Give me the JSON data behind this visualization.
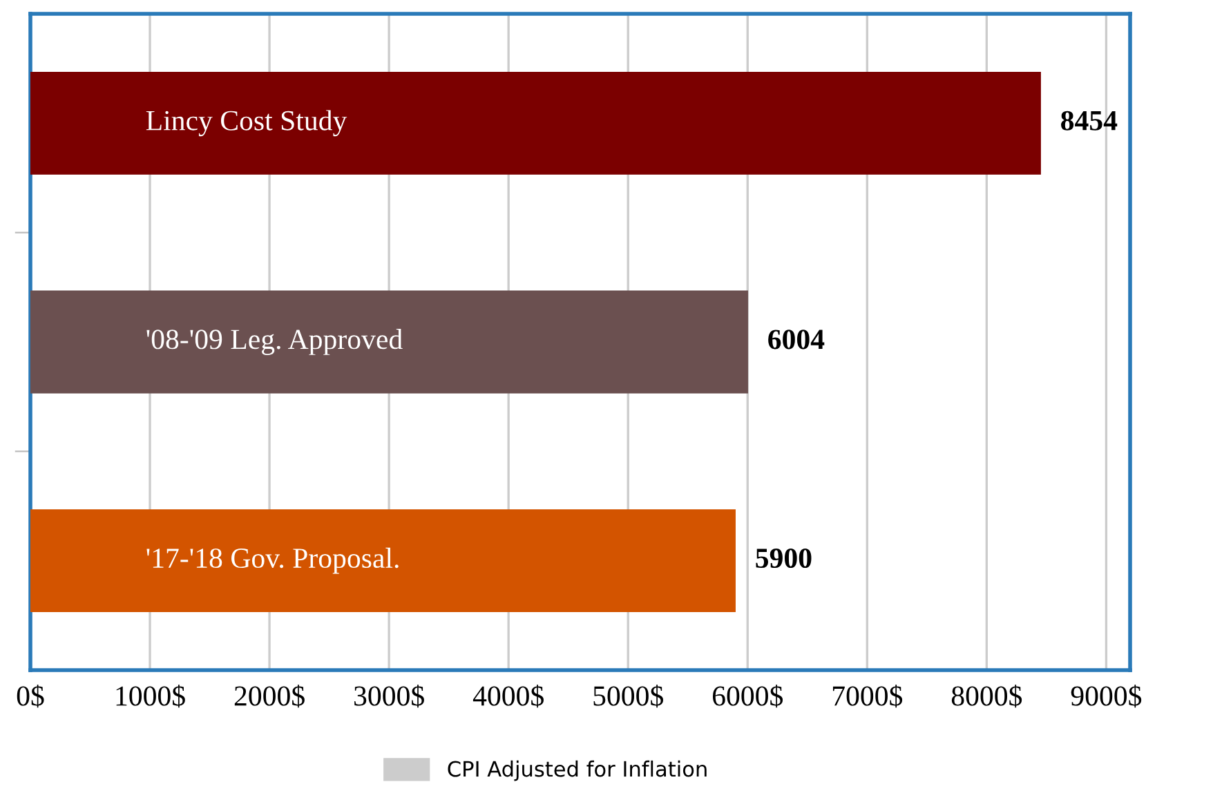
{
  "chart_data": {
    "type": "bar",
    "orientation": "horizontal",
    "categories": [
      "Lincy Cost Study",
      "'08-'09 Leg. Approved",
      "'17-'18 Gov. Proposal."
    ],
    "series": [
      {
        "name": "CPI Adjusted for Inflation",
        "color": "#cccccc",
        "colors": [
          "#7b0000",
          "#6b5050",
          "#d35400"
        ],
        "values": [
          8454,
          6004,
          5900
        ]
      }
    ],
    "xlim": [
      0,
      9200
    ],
    "xticks": [
      {
        "value": 0,
        "label": "0$"
      },
      {
        "value": 1000,
        "label": "1000$"
      },
      {
        "value": 2000,
        "label": "2000$"
      },
      {
        "value": 3000,
        "label": "3000$"
      },
      {
        "value": 4000,
        "label": "4000$"
      },
      {
        "value": 5000,
        "label": "5000$"
      },
      {
        "value": 6000,
        "label": "6000$"
      },
      {
        "value": 7000,
        "label": "7000$"
      },
      {
        "value": 8000,
        "label": "8000$"
      },
      {
        "value": 9000,
        "label": "9000$"
      }
    ],
    "grid": "x",
    "data_labels": true,
    "legend": "bottom",
    "tick_labels": "x"
  }
}
